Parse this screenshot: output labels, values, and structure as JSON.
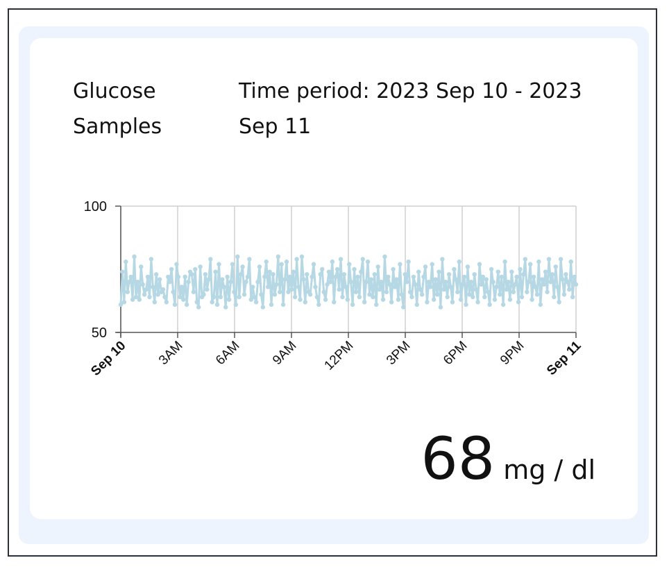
{
  "card": {
    "title": "Glucose Samples",
    "period": "Time period: 2023 Sep 10 - 2023 Sep 11"
  },
  "reading": {
    "value": "68",
    "unit": "mg / dl"
  },
  "colors": {
    "line": "#b5d8e4",
    "grid": "#cfcfcf",
    "axis": "#555555",
    "card_bg": "#eef4fd"
  },
  "chart_data": {
    "type": "line",
    "ylim": [
      50,
      100
    ],
    "y_ticks": [
      50,
      100
    ],
    "x_tick_labels": [
      "Sep 10",
      "3AM",
      "6AM",
      "9AM",
      "12PM",
      "3PM",
      "6PM",
      "9PM",
      "Sep 11"
    ],
    "x_tick_bold": [
      true,
      false,
      false,
      false,
      false,
      false,
      false,
      false,
      true
    ],
    "grid": true,
    "series": [
      {
        "values": [
          61,
          74,
          62,
          78,
          66,
          70,
          72,
          63,
          80,
          64,
          70,
          63,
          76,
          69,
          65,
          67,
          72,
          64,
          79,
          68,
          62,
          73,
          65,
          71,
          66,
          67,
          64,
          62,
          72,
          70,
          75,
          66,
          61,
          77,
          72,
          64,
          68,
          63,
          72,
          61,
          70,
          74,
          73,
          66,
          75,
          62,
          60,
          76,
          64,
          65,
          73,
          67,
          71,
          79,
          62,
          64,
          74,
          61,
          77,
          64,
          71,
          68,
          60,
          72,
          63,
          70,
          77,
          66,
          61,
          80,
          64,
          73,
          76,
          65,
          70,
          72,
          79,
          63,
          68,
          64,
          62,
          70,
          76,
          65,
          60,
          72,
          78,
          68,
          74,
          61,
          73,
          65,
          69,
          80,
          66,
          77,
          61,
          71,
          78,
          66,
          72,
          67,
          74,
          64,
          79,
          68,
          63,
          80,
          71,
          62,
          73,
          66,
          65,
          72,
          77,
          68,
          64,
          61,
          73,
          75,
          66,
          63,
          69,
          74,
          70,
          78,
          62,
          72,
          75,
          67,
          79,
          64,
          73,
          68,
          63,
          77,
          70,
          61,
          75,
          66,
          72,
          64,
          74,
          79,
          62,
          70,
          78,
          65,
          71,
          64,
          73,
          61,
          76,
          67,
          70,
          63,
          80,
          66,
          72,
          69,
          62,
          75,
          68,
          71,
          63,
          77,
          65,
          60,
          73,
          70,
          78,
          66,
          64,
          72,
          69,
          61,
          74,
          67,
          65,
          72,
          76,
          62,
          70,
          68,
          77,
          63,
          71,
          65,
          74,
          60,
          79,
          67,
          70,
          64,
          73,
          68,
          62,
          75,
          71,
          66,
          78,
          63,
          69,
          72,
          61,
          76,
          65,
          70,
          64,
          73,
          67,
          62,
          77,
          69,
          72,
          64,
          71,
          66,
          61,
          75,
          70,
          63,
          68,
          74,
          65,
          72,
          61,
          78,
          67,
          70,
          63,
          74,
          66,
          69,
          72,
          62,
          75,
          64,
          73,
          79,
          66,
          70,
          77,
          63,
          72,
          68,
          65,
          78,
          61,
          71,
          69,
          74,
          66,
          79,
          70,
          73,
          64,
          76,
          68,
          62,
          79,
          71,
          65,
          73,
          70,
          67,
          78,
          64,
          72,
          69
        ]
      }
    ]
  }
}
